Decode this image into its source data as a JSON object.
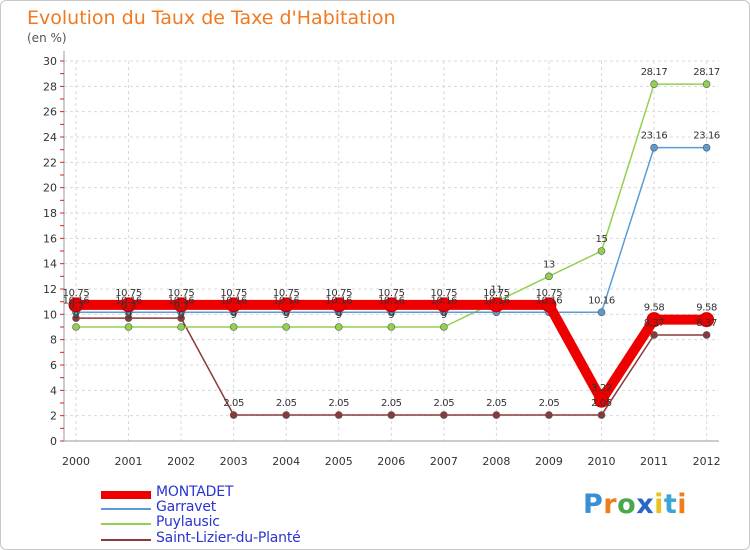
{
  "header": {
    "title": "Evolution du Taux de Taxe d'Habitation",
    "unit": "(en %)"
  },
  "chart_data": {
    "type": "line",
    "title": "Evolution du Taux de Taxe d'Habitation",
    "ylabel": "(en %)",
    "xlabel": "",
    "categories": [
      "2000",
      "2001",
      "2002",
      "2003",
      "2004",
      "2005",
      "2006",
      "2007",
      "2008",
      "2009",
      "2010",
      "2011",
      "2012"
    ],
    "ylim": [
      0,
      30
    ],
    "yticks": [
      0,
      2,
      4,
      6,
      8,
      10,
      12,
      14,
      16,
      18,
      20,
      22,
      24,
      26,
      28,
      30
    ],
    "grid": true,
    "legend_position": "bottom-left",
    "series": [
      {
        "name": "MONTADET",
        "color": "#ee0000",
        "values": [
          10.75,
          10.75,
          10.75,
          10.75,
          10.75,
          10.75,
          10.75,
          10.75,
          10.75,
          10.75,
          3.22,
          9.58,
          9.58
        ],
        "labels": [
          "10.75",
          "10.75",
          "10.75",
          "10.75",
          "10.75",
          "10.75",
          "10.75",
          "10.75",
          "10.75",
          "10.75",
          "3.22",
          "9.58",
          "9.58"
        ]
      },
      {
        "name": "Garravet",
        "color": "#5b9bd5",
        "values": [
          10.16,
          10.16,
          10.16,
          10.16,
          10.16,
          10.16,
          10.16,
          10.16,
          10.16,
          10.16,
          10.16,
          23.16,
          23.16
        ],
        "labels": [
          "10.16",
          "10.16",
          "10.16",
          "10.16",
          "10.16",
          "10.16",
          "10.16",
          "10.16",
          "10.16",
          "10.16",
          "10.16",
          "23.16",
          "23.16"
        ]
      },
      {
        "name": "Puylausic",
        "color": "#92d050",
        "values": [
          9,
          9,
          9,
          9,
          9,
          9,
          9,
          9,
          11,
          13,
          15,
          28.17,
          28.17
        ],
        "labels": [
          "9",
          "9",
          "9",
          "9",
          "9",
          "9",
          "9",
          "9",
          "11",
          "13",
          "15",
          "28.17",
          "28.17"
        ]
      },
      {
        "name": "Saint-Lizier-du-Planté",
        "color": "#8b3a3a",
        "values": [
          9.7,
          9.7,
          9.7,
          2.05,
          2.05,
          2.05,
          2.05,
          2.05,
          2.05,
          2.05,
          2.05,
          8.37,
          8.37
        ],
        "labels": [
          "9.7",
          "9.7",
          "9.7",
          "2.05",
          "2.05",
          "2.05",
          "2.05",
          "2.05",
          "2.05",
          "2.05",
          "2.05",
          "8.37",
          "8.37"
        ]
      }
    ]
  },
  "legend": {
    "items": [
      "MONTADET",
      "Garravet",
      "Puylausic",
      "Saint-Lizier-du-Planté"
    ]
  },
  "logo": {
    "text": "Proxiti",
    "letters": [
      "P",
      "r",
      "o",
      "x",
      "i",
      "t",
      "i"
    ],
    "colors": [
      "#3a8fd4",
      "#f07c1e",
      "#4aa84a",
      "#2a65c8",
      "#e7c21e",
      "#3aa6d6",
      "#f07c1e"
    ]
  }
}
